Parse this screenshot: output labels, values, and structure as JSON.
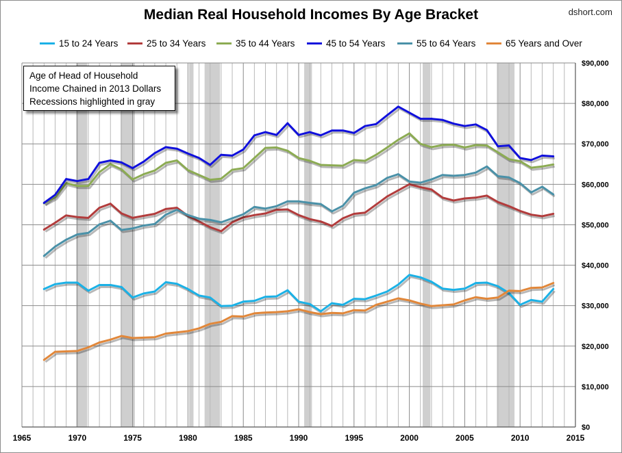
{
  "title": "Median Real Household Incomes By Age Bracket",
  "credit": "dshort.com",
  "annotation": {
    "lines": [
      "Age of Head of Household",
      "Income Chained in 2013 Dollars",
      "Recessions highlighted in gray"
    ]
  },
  "chart_data": {
    "type": "line",
    "title": "Median Real Household Incomes By Age Bracket",
    "xlabel": "",
    "ylabel": "",
    "xlim": [
      1965,
      2015
    ],
    "ylim": [
      0,
      90000
    ],
    "y_axis_side": "right",
    "grid": true,
    "legend_position": "top",
    "x_ticks": [
      1965,
      1970,
      1975,
      1980,
      1985,
      1990,
      1995,
      2000,
      2005,
      2010,
      2015
    ],
    "x_tick_labels": [
      "1965",
      "1970",
      "1975",
      "1980",
      "1985",
      "1990",
      "1995",
      "2000",
      "2005",
      "2010",
      "2015"
    ],
    "y_ticks": [
      0,
      10000,
      20000,
      30000,
      40000,
      50000,
      60000,
      70000,
      80000,
      90000
    ],
    "y_tick_labels": [
      "$0",
      "$10,000",
      "$20,000",
      "$30,000",
      "$40,000",
      "$50,000",
      "$60,000",
      "$70,000",
      "$80,000",
      "$90,000"
    ],
    "recessions": [
      [
        1969.9,
        1970.9
      ],
      [
        1973.9,
        1975.2
      ],
      [
        1980.1,
        1980.5
      ],
      [
        1981.5,
        1982.9
      ],
      [
        1990.5,
        1991.2
      ],
      [
        2001.2,
        2001.9
      ],
      [
        2007.9,
        2009.5
      ]
    ],
    "x": [
      1967,
      1968,
      1969,
      1970,
      1971,
      1972,
      1973,
      1974,
      1975,
      1976,
      1977,
      1978,
      1979,
      1980,
      1981,
      1982,
      1983,
      1984,
      1985,
      1986,
      1987,
      1988,
      1989,
      1990,
      1991,
      1992,
      1993,
      1994,
      1995,
      1996,
      1997,
      1998,
      1999,
      2000,
      2001,
      2002,
      2003,
      2004,
      2005,
      2006,
      2007,
      2008,
      2009,
      2010,
      2011,
      2012,
      2013
    ],
    "series": [
      {
        "name": "15 to 24 Years",
        "color": "#1bb1e6",
        "values": [
          34100,
          35300,
          35700,
          35700,
          33700,
          35100,
          35100,
          34600,
          32000,
          33000,
          33500,
          35800,
          35400,
          34100,
          32500,
          32000,
          29900,
          30000,
          31000,
          31200,
          32200,
          32300,
          33800,
          31000,
          30400,
          28600,
          30600,
          30200,
          31700,
          31600,
          32500,
          33500,
          35200,
          37600,
          37000,
          35900,
          34200,
          33900,
          34200,
          35600,
          35700,
          34800,
          33100,
          30200,
          31400,
          31000,
          34100
        ]
      },
      {
        "name": "25 to 34 Years",
        "color": "#b23c3c",
        "values": [
          48800,
          50500,
          52300,
          51900,
          51700,
          54200,
          55200,
          52800,
          51700,
          52200,
          52700,
          53900,
          54200,
          52200,
          50800,
          49400,
          48400,
          50600,
          51800,
          52400,
          52800,
          53700,
          53800,
          52400,
          51400,
          50800,
          49700,
          51600,
          52700,
          53000,
          55000,
          57000,
          58500,
          60000,
          59300,
          58700,
          56700,
          56000,
          56500,
          56700,
          57200,
          55600,
          54600,
          53400,
          52500,
          52100,
          52700
        ]
      },
      {
        "name": "35 to 44 Years",
        "color": "#8cab53",
        "values": [
          55300,
          56800,
          60300,
          59600,
          59600,
          63000,
          65000,
          63700,
          61200,
          62500,
          63400,
          65300,
          65900,
          63500,
          62300,
          61100,
          61400,
          63600,
          64000,
          66500,
          69000,
          69100,
          68300,
          66500,
          65800,
          64800,
          64700,
          64600,
          66000,
          65800,
          67300,
          69100,
          71000,
          72600,
          70000,
          69200,
          69700,
          69800,
          69100,
          69700,
          69600,
          67900,
          66200,
          65700,
          64100,
          64400,
          64900
        ]
      },
      {
        "name": "45 to 54 Years",
        "color": "#1010dc",
        "values": [
          55400,
          57400,
          61300,
          60800,
          61300,
          65300,
          65900,
          65400,
          64000,
          65600,
          67700,
          69200,
          68800,
          67600,
          66500,
          64800,
          67300,
          67100,
          68600,
          72100,
          72900,
          72200,
          75100,
          72200,
          72900,
          72100,
          73300,
          73300,
          72700,
          74400,
          74900,
          77100,
          79200,
          77700,
          76200,
          76200,
          75900,
          75000,
          74400,
          74800,
          73400,
          69400,
          69600,
          66500,
          66000,
          67100,
          66900
        ]
      },
      {
        "name": "55 to 64 Years",
        "color": "#4a91a8",
        "values": [
          42300,
          44600,
          46300,
          47600,
          48000,
          50100,
          51000,
          48700,
          49100,
          49800,
          50200,
          52500,
          53700,
          52400,
          51500,
          51200,
          50600,
          51600,
          52600,
          54400,
          54000,
          54600,
          55800,
          55800,
          55400,
          55100,
          53300,
          54700,
          57900,
          59000,
          59800,
          61600,
          62500,
          60700,
          60400,
          61200,
          62300,
          62100,
          62300,
          62900,
          64400,
          62000,
          61700,
          60300,
          58000,
          59400,
          57500
        ]
      },
      {
        "name": "65 Years and Over",
        "color": "#e1873a",
        "values": [
          16600,
          18600,
          18700,
          18800,
          19700,
          20900,
          21600,
          22500,
          22000,
          22100,
          22200,
          23100,
          23400,
          23700,
          24400,
          25500,
          26000,
          27400,
          27300,
          28100,
          28300,
          28400,
          28600,
          29100,
          28400,
          27900,
          28200,
          28100,
          28900,
          28800,
          30200,
          31000,
          31800,
          31300,
          30500,
          29900,
          30100,
          30300,
          31300,
          32100,
          31700,
          32000,
          33700,
          33600,
          34400,
          34500,
          35600
        ]
      }
    ]
  }
}
